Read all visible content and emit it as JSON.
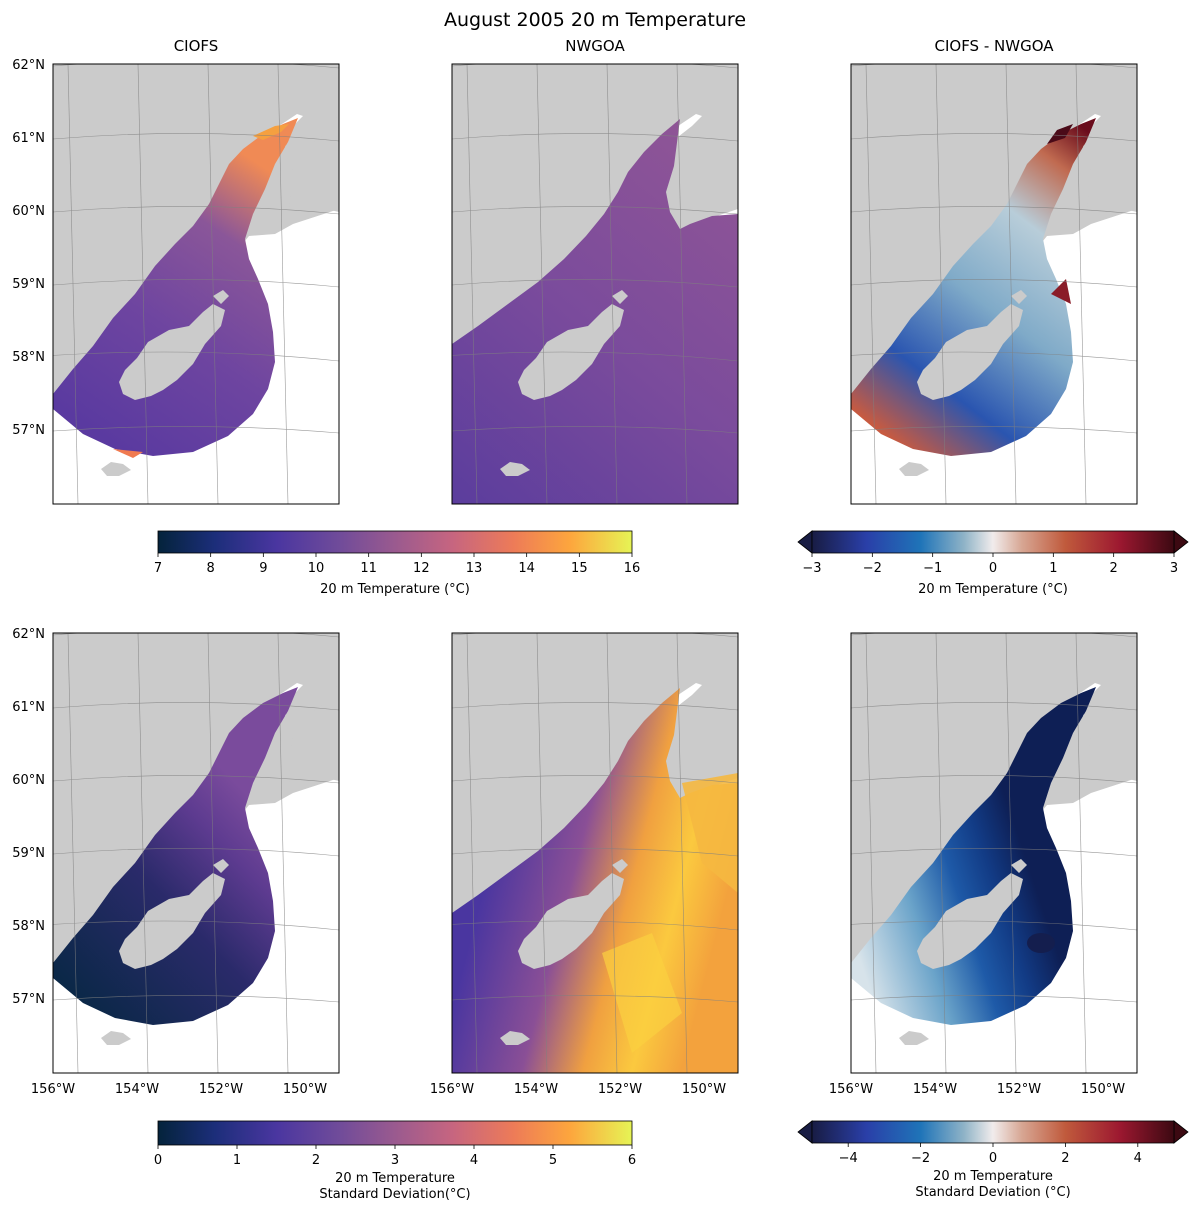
{
  "figure": {
    "title": "August 2005 20 m Temperature"
  },
  "chart_data": [
    {
      "type": "heatmap",
      "title": "CIOFS",
      "variable": "mean 20 m temperature",
      "colormap": "thermal",
      "xlim": [
        -156,
        -149
      ],
      "ylim": [
        56,
        62
      ]
    },
    {
      "type": "heatmap",
      "title": "NWGOA",
      "variable": "mean 20 m temperature",
      "colormap": "thermal",
      "xlim": [
        -156,
        -149
      ],
      "ylim": [
        56,
        62
      ]
    },
    {
      "type": "heatmap",
      "title": "CIOFS - NWGOA",
      "variable": "mean 20 m temperature difference",
      "colormap": "balance",
      "xlim": [
        -156,
        -149
      ],
      "ylim": [
        56,
        62
      ]
    },
    {
      "type": "heatmap",
      "title": "",
      "variable": "20 m temperature standard deviation (CIOFS)",
      "colormap": "thermal",
      "xlim": [
        -156,
        -149
      ],
      "ylim": [
        56,
        62
      ]
    },
    {
      "type": "heatmap",
      "title": "",
      "variable": "20 m temperature standard deviation (NWGOA)",
      "colormap": "thermal",
      "xlim": [
        -156,
        -149
      ],
      "ylim": [
        56,
        62
      ]
    },
    {
      "type": "heatmap",
      "title": "",
      "variable": "20 m temperature standard deviation difference",
      "colormap": "balance",
      "xlim": [
        -156,
        -149
      ],
      "ylim": [
        56,
        62
      ]
    }
  ],
  "axes": {
    "lat_ticks": [
      "62°N",
      "61°N",
      "60°N",
      "59°N",
      "58°N",
      "57°N"
    ],
    "lon_ticks": [
      "156°W",
      "154°W",
      "152°W",
      "150°W"
    ]
  },
  "colorbars": [
    {
      "label": "20 m Temperature (°C)",
      "ticks": [
        "7",
        "8",
        "9",
        "10",
        "11",
        "12",
        "13",
        "14",
        "15",
        "16"
      ],
      "range": [
        7,
        16
      ],
      "colormap": "thermal",
      "extend": "neither"
    },
    {
      "label": "20 m Temperature (°C)",
      "ticks": [
        "−3",
        "−2",
        "−1",
        "0",
        "1",
        "2",
        "3"
      ],
      "range": [
        -3,
        3
      ],
      "colormap": "balance",
      "extend": "both"
    },
    {
      "label_line1": "20 m Temperature",
      "label_line2": "Standard Deviation(°C)",
      "ticks": [
        "0",
        "1",
        "2",
        "3",
        "4",
        "5",
        "6"
      ],
      "range": [
        0,
        6
      ],
      "colormap": "thermal",
      "extend": "neither"
    },
    {
      "label_line1": "20 m Temperature",
      "label_line2": "Standard Deviation (°C)",
      "ticks": [
        "−4",
        "−2",
        "0",
        "2",
        "4"
      ],
      "range": [
        -5,
        5
      ],
      "colormap": "balance",
      "extend": "both"
    }
  ],
  "colors": {
    "land": "#cbcbcb",
    "ocean": "#ffffff",
    "grid": "#808080"
  }
}
